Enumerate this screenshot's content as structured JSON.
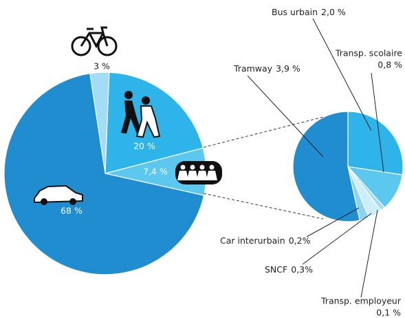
{
  "chart_data": [
    {
      "type": "pie",
      "categories": [
        "Vélo",
        "Marche",
        "Transports en commun",
        "Voiture"
      ],
      "values": [
        3,
        20,
        7.4,
        68
      ],
      "value_labels": [
        "3 %",
        "20 %",
        "7,4 %",
        "68 %"
      ],
      "colors": [
        "#a3dcf5",
        "#2fb4ea",
        "#5cc8f0",
        "#1f8dd0"
      ]
    },
    {
      "type": "pie",
      "categories": [
        "Bus urbain",
        "Transp. scolaire",
        "Transp. employeur",
        "SNCF",
        "Car interurbain",
        "Tramway"
      ],
      "values": [
        2.0,
        0.8,
        0.1,
        0.3,
        0.2,
        3.9
      ],
      "value_labels": [
        "2,0 %",
        "0,8 %",
        "0,1 %",
        "0,3%",
        "0,2%",
        "3,9 %"
      ],
      "colors": [
        "#2fb4ea",
        "#5cc8f0",
        "#a3dcf5",
        "#cdeefb",
        "#8fd3f2",
        "#1f8dd0"
      ]
    }
  ]
}
